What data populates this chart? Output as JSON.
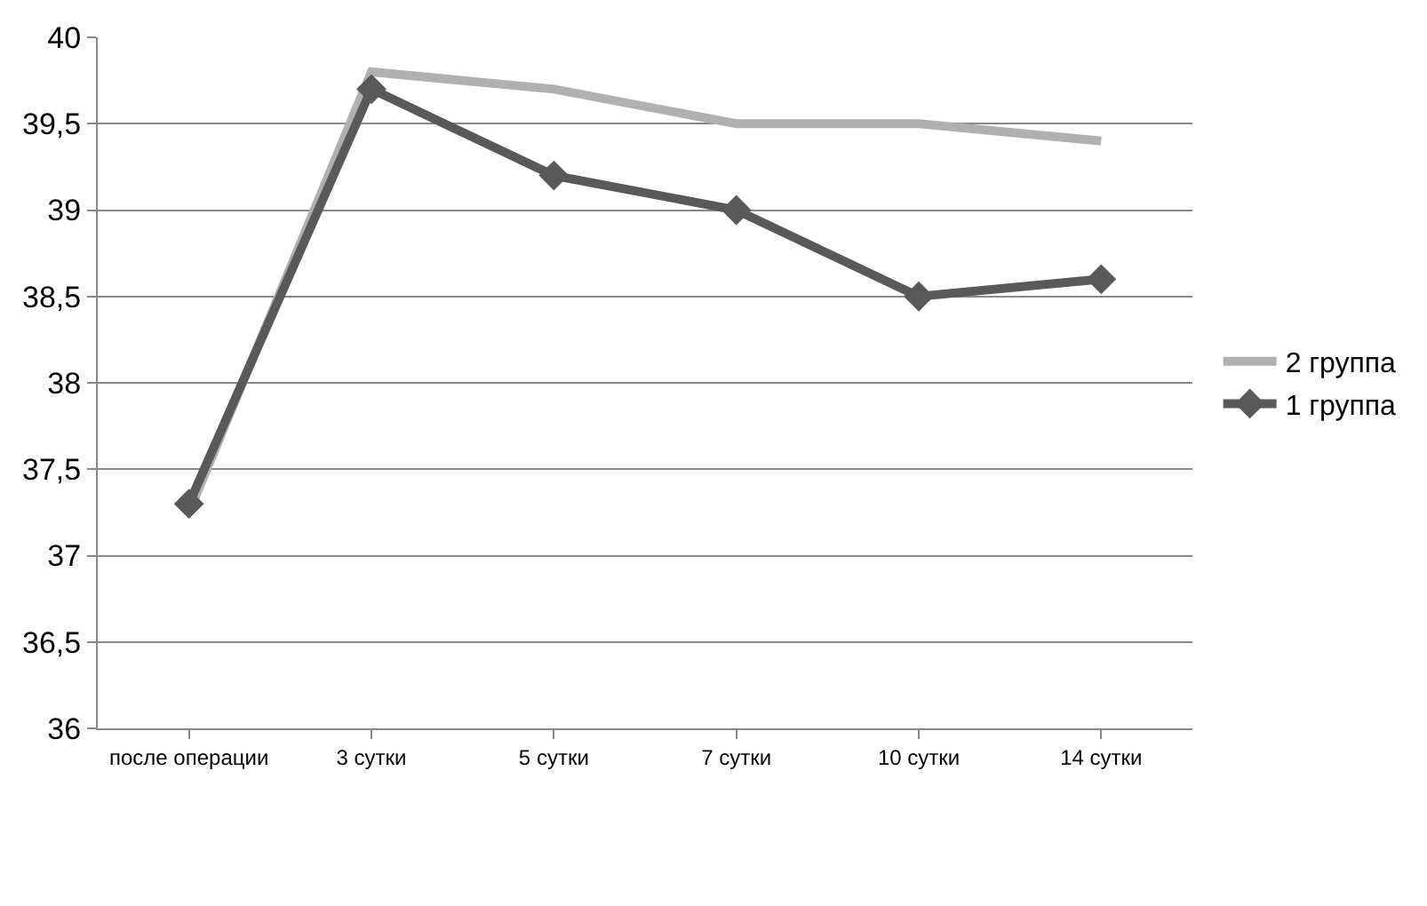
{
  "chart_data": {
    "type": "line",
    "categories": [
      "после операции",
      "3 сутки",
      "5 сутки",
      "7 сутки",
      "10 сутки",
      "14 сутки"
    ],
    "series": [
      {
        "name": "2 группа",
        "color": "#b0b0b0",
        "marker": "none",
        "values": [
          37.25,
          39.8,
          39.7,
          39.5,
          39.5,
          39.4
        ]
      },
      {
        "name": "1 группа",
        "color": "#595959",
        "marker": "diamond",
        "values": [
          37.3,
          39.7,
          39.2,
          39.0,
          38.5,
          38.6
        ]
      }
    ],
    "ylim": [
      36,
      40
    ],
    "yticks": [
      36,
      {
        "value": 36.5,
        "label": "36,5"
      },
      37,
      {
        "value": 37.5,
        "label": "37,5"
      },
      38,
      {
        "value": 38.5,
        "label": "38,5"
      },
      39,
      {
        "value": 39.5,
        "label": "39,5"
      },
      40
    ],
    "grid": "y",
    "legend": "right",
    "line_style": "solid"
  }
}
